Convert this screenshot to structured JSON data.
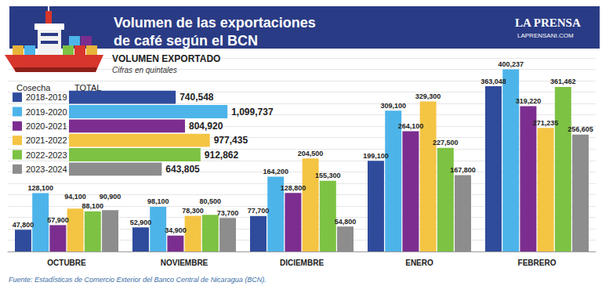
{
  "header": {
    "title": "Volumen de las exportaciones\nde café según el BCN",
    "brand": "LA PRENSA",
    "site": "LAPRENSANI.COM"
  },
  "source": "Fuente: Estadísticas de Comercio Exterior del Banco Central de Nicaragua (BCN).",
  "chart_data": [
    {
      "type": "bar",
      "title": "VOLUMEN EXPORTADO",
      "subtitle": "Cifras en quintales",
      "orientation": "horizontal",
      "ylabel": "Cosecha",
      "xlabel": "TOTAL",
      "categories": [
        "2018-2019",
        "2019-2020",
        "2020-2021",
        "2021-2022",
        "2022-2023",
        "2023-2024"
      ],
      "values": [
        740548,
        1099737,
        804920,
        977435,
        912862,
        643805
      ],
      "value_labels": [
        "740,548",
        "1,099,737",
        "804,920",
        "977,435",
        "912,862",
        "643,805"
      ],
      "colors": [
        "#2f4b9c",
        "#4db4ea",
        "#7b2e8f",
        "#f4c443",
        "#7dc243",
        "#8d8d8d"
      ],
      "data_labels": true,
      "xlim": [
        0,
        1300000
      ],
      "tick_labels": false,
      "grid": false
    },
    {
      "type": "bar",
      "categories": [
        "OCTUBRE",
        "NOVIEMBRE",
        "DICIEMBRE",
        "ENERO",
        "FEBRERO"
      ],
      "series": [
        {
          "name": "2018-2019",
          "color": "#2f4b9c",
          "values": [
            47800,
            52900,
            77700,
            199100,
            363048
          ],
          "value_labels": [
            "47,800",
            "52,900",
            "77,700",
            "199,100",
            "363,048"
          ]
        },
        {
          "name": "2019-2020",
          "color": "#4db4ea",
          "values": [
            128100,
            98100,
            164200,
            309100,
            400237
          ],
          "value_labels": [
            "128,100",
            "98,100",
            "164,200",
            "309,100",
            "400,237"
          ]
        },
        {
          "name": "2020-2021",
          "color": "#7b2e8f",
          "values": [
            57900,
            34900,
            128800,
            264100,
            319220
          ],
          "value_labels": [
            "57,900",
            "34,900",
            "128,800",
            "264,100",
            "319,220"
          ]
        },
        {
          "name": "2021-2022",
          "color": "#f4c443",
          "values": [
            94100,
            78300,
            204500,
            329300,
            271235
          ],
          "value_labels": [
            "94,100",
            "78,300",
            "204,500",
            "329,300",
            "271,235"
          ]
        },
        {
          "name": "2022-2023",
          "color": "#7dc243",
          "values": [
            88100,
            80500,
            155300,
            227500,
            361462
          ],
          "value_labels": [
            "88,100",
            "80,500",
            "155,300",
            "227,500",
            "361,462"
          ]
        },
        {
          "name": "2023-2024",
          "color": "#8d8d8d",
          "values": [
            90900,
            73700,
            54800,
            167800,
            256605
          ],
          "value_labels": [
            "90,900",
            "73,700",
            "54,800",
            "167,800",
            "256,605"
          ]
        }
      ],
      "ylim": [
        0,
        425000
      ],
      "yticks": [
        0,
        25000,
        50000,
        75000,
        100000,
        125000,
        150000,
        175000,
        200000,
        225000,
        250000,
        275000,
        300000,
        325000,
        350000,
        375000,
        400000,
        425000
      ],
      "grid": true,
      "tick_labels": "x",
      "data_labels": true
    }
  ]
}
